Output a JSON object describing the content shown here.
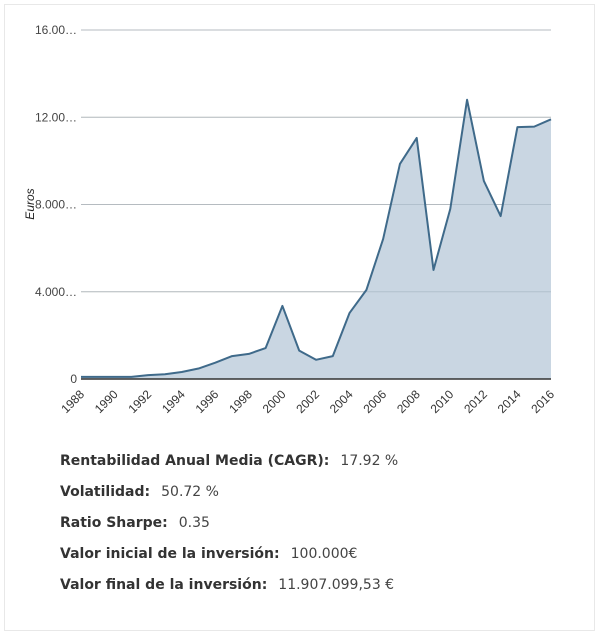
{
  "chart_data": {
    "type": "area",
    "ylabel": "Euros",
    "xlabel": "",
    "ylim": [
      0,
      16000
    ],
    "y_tick_labels": [
      "0",
      "4.000…",
      "8.000…",
      "12.00…",
      "16.00…"
    ],
    "y_ticks": [
      0,
      4000,
      8000,
      12000,
      16000
    ],
    "x_tick_labels": [
      "1988",
      "1990",
      "1992",
      "1994",
      "1996",
      "1998",
      "2000",
      "2002",
      "2004",
      "2006",
      "2008",
      "2010",
      "2012",
      "2014",
      "2016"
    ],
    "grid": true,
    "x": [
      1988,
      1989,
      1990,
      1991,
      1992,
      1993,
      1994,
      1995,
      1996,
      1997,
      1998,
      1999,
      2000,
      2001,
      2002,
      2003,
      2004,
      2005,
      2006,
      2007,
      2008,
      2009,
      2010,
      2011,
      2012,
      2013,
      2014,
      2015,
      2016
    ],
    "values": [
      100,
      100,
      100,
      100,
      180,
      220,
      320,
      480,
      750,
      1050,
      1150,
      1420,
      3350,
      1300,
      880,
      1050,
      3030,
      4080,
      6420,
      9860,
      11050,
      5000,
      7800,
      12800,
      9080,
      7470,
      11550,
      11570,
      11907
    ],
    "colors": {
      "line": "#3f6a8a",
      "fill": "#c6d4e0",
      "grid": "#cccccc",
      "axis": "#333333"
    }
  },
  "stats": [
    {
      "label": "Rentabilidad Anual Media (CAGR):",
      "value": "17.92 %"
    },
    {
      "label": "Volatilidad:",
      "value": "50.72 %"
    },
    {
      "label": "Ratio Sharpe:",
      "value": "0.35"
    },
    {
      "label": "Valor inicial de la inversión:",
      "value": "100.000€"
    },
    {
      "label": "Valor final de la inversión:",
      "value": "11.907.099,53 €"
    }
  ]
}
